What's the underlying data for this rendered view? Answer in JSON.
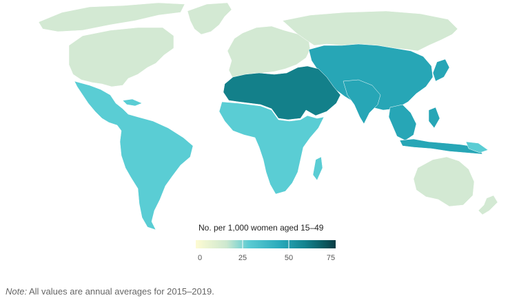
{
  "legend": {
    "title": "No. per 1,000 women aged 15–49",
    "ticks": [
      "0",
      "25",
      "50",
      "75"
    ],
    "colors": [
      "#fefbd3",
      "#cde8cf",
      "#5bcbd3",
      "#2aaabb",
      "#13838f",
      "#0b5f66",
      "#0a3c44"
    ]
  },
  "note": {
    "label": "Note:",
    "text": " All values are annual averages for 2015–2019."
  },
  "regions": [
    {
      "name": "north-america",
      "value_band": "low",
      "color": "#d3e9d3"
    },
    {
      "name": "greenland",
      "value_band": "low",
      "color": "#d3e9d3"
    },
    {
      "name": "europe",
      "value_band": "low",
      "color": "#d3e9d3"
    },
    {
      "name": "russia",
      "value_band": "low",
      "color": "#d3e9d3"
    },
    {
      "name": "oceania",
      "value_band": "low",
      "color": "#d3e9d3"
    },
    {
      "name": "latin-america",
      "value_band": "mid",
      "color": "#5acdd4"
    },
    {
      "name": "sub-saharan-africa",
      "value_band": "mid",
      "color": "#5acdd4"
    },
    {
      "name": "central-asia",
      "value_band": "high",
      "color": "#27a6b6"
    },
    {
      "name": "south-east-asia",
      "value_band": "high",
      "color": "#27a6b6"
    },
    {
      "name": "north-africa-western-asia",
      "value_band": "very-high",
      "color": "#13808a"
    }
  ]
}
